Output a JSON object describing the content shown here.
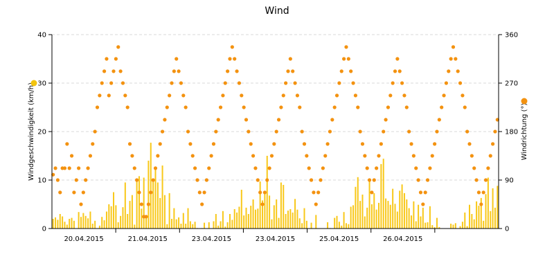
{
  "chart_data": {
    "type": "bar+scatter",
    "title": "Wind",
    "ylabel_left": "Windgeschwindigkeit (km/h)",
    "ylabel_right": "Windrichtung (°)",
    "ylim_left": [
      0,
      40
    ],
    "ylim_right": [
      0,
      360
    ],
    "yticks_left": [
      "0",
      "10",
      "20",
      "30",
      "40"
    ],
    "yticks_right": [
      "0",
      "90",
      "180",
      "270",
      "360"
    ],
    "xtick_labels": [
      "20.04.2015",
      "21.04.2015",
      "23.04.2015",
      "23.04.2015",
      "25.04.2015",
      "26.04.2015"
    ],
    "grid": true,
    "legend": [
      {
        "axis": "left",
        "color": "#f2c40f"
      },
      {
        "axis": "right",
        "color": "#f39210"
      }
    ],
    "colors": {
      "speed": "#f8c81a",
      "direction": "#f39210",
      "grid": "#d9d9d9",
      "axis": "#000000"
    },
    "series": [
      {
        "type": "bar",
        "axis": "left",
        "color": "#f8c81a",
        "x_range": [
          0,
          7
        ],
        "note": "approx. hourly wind speed, 7 days x 24 h",
        "values": [
          2.0,
          2.3,
          1.8,
          3.0,
          2.5,
          1.4,
          0.8,
          2.0,
          2.2,
          1.6,
          0.0,
          3.4,
          2.4,
          3.2,
          2.6,
          2.1,
          3.5,
          1.0,
          1.6,
          0.0,
          0.6,
          2.4,
          1.7,
          3.5,
          5.0,
          4.6,
          7.5,
          4.8,
          1.3,
          2.6,
          4.4,
          9.5,
          3.0,
          5.7,
          6.9,
          0.8,
          10.1,
          10.8,
          4.1,
          10.5,
          2.3,
          14.0,
          17.7,
          10.0,
          12.5,
          9.5,
          6.3,
          13.0,
          6.9,
          0.9,
          7.3,
          2.0,
          4.2,
          1.9,
          2.3,
          1.0,
          3.2,
          1.0,
          4.2,
          1.5,
          0.9,
          1.4,
          0.1,
          0.0,
          0.1,
          1.2,
          0.0,
          1.3,
          0.0,
          1.5,
          3.0,
          0.6,
          1.5,
          3.6,
          0.4,
          1.3,
          3.0,
          1.8,
          4.0,
          3.3,
          4.5,
          8.0,
          2.7,
          4.3,
          3.0,
          4.7,
          6.0,
          3.9,
          4.1,
          9.7,
          5.8,
          7.5,
          15.0,
          6.8,
          1.9,
          4.8,
          6.0,
          2.2,
          9.5,
          9.0,
          3.0,
          3.7,
          4.0,
          3.3,
          6.1,
          3.9,
          2.1,
          1.1,
          4.2,
          1.6,
          0.0,
          1.2,
          0.0,
          2.8,
          0.0,
          0.0,
          0.0,
          0.0,
          1.3,
          0.1,
          0.0,
          2.2,
          2.6,
          1.4,
          0.6,
          3.4,
          1.1,
          0.9,
          4.5,
          4.8,
          8.6,
          10.6,
          5.7,
          7.0,
          2.5,
          4.3,
          10.3,
          5.0,
          7.3,
          3.9,
          5.3,
          13.3,
          14.4,
          6.2,
          5.7,
          4.9,
          8.2,
          5.1,
          3.5,
          7.8,
          9.1,
          7.3,
          6.0,
          4.2,
          2.7,
          5.6,
          1.5,
          4.9,
          2.5,
          4.3,
          1.2,
          1.3,
          4.6,
          0.7,
          0.3,
          2.2,
          0.3,
          0.0,
          0.0,
          0.0,
          0.0,
          1.0,
          0.8,
          1.1,
          0.0,
          0.5,
          1.4,
          3.3,
          0.5,
          4.9,
          3.0,
          1.9,
          5.6,
          4.7,
          6.3,
          1.6,
          7.1,
          10.5,
          3.6,
          8.3,
          4.3,
          8.8
        ]
      },
      {
        "type": "scatter",
        "axis": "right",
        "color": "#f39210",
        "x_range": [
          0,
          7
        ],
        "note": "approx. wind direction samples",
        "values": [
          100,
          112,
          90,
          67,
          112,
          112,
          157,
          112,
          135,
          67,
          90,
          112,
          45,
          67,
          90,
          112,
          135,
          157,
          180,
          225,
          247,
          270,
          292,
          315,
          247,
          270,
          292,
          315,
          337,
          292,
          270,
          247,
          225,
          157,
          135,
          112,
          90,
          67,
          45,
          22,
          22,
          45,
          67,
          90,
          112,
          135,
          157,
          180,
          202,
          225,
          247,
          270,
          292,
          315,
          292,
          270,
          247,
          225,
          180,
          157,
          135,
          112,
          90,
          67,
          45,
          67,
          90,
          112,
          135,
          157,
          180,
          202,
          225,
          247,
          270,
          292,
          315,
          337,
          315,
          292,
          270,
          247,
          225,
          202,
          180,
          157,
          135,
          112,
          90,
          67,
          45,
          67,
          90,
          112,
          135,
          157,
          180,
          202,
          225,
          247,
          270,
          292,
          315,
          292,
          270,
          247,
          225,
          180,
          157,
          135,
          112,
          90,
          67,
          45,
          67,
          90,
          112,
          135,
          157,
          180,
          202,
          225,
          247,
          270,
          292,
          315,
          337,
          315,
          292,
          270,
          247,
          225,
          180,
          157,
          135,
          112,
          90,
          67,
          90,
          112,
          135,
          157,
          180,
          202,
          225,
          247,
          270,
          292,
          315,
          292,
          270,
          247,
          225,
          180,
          157,
          135,
          112,
          90,
          67,
          45,
          67,
          90,
          112,
          135,
          157,
          180,
          202,
          225,
          247,
          270,
          292,
          315,
          337,
          315,
          292,
          270,
          247,
          225,
          180,
          157,
          135,
          112,
          90,
          67,
          45,
          67,
          90,
          112,
          135,
          157,
          180,
          202
        ]
      }
    ]
  }
}
